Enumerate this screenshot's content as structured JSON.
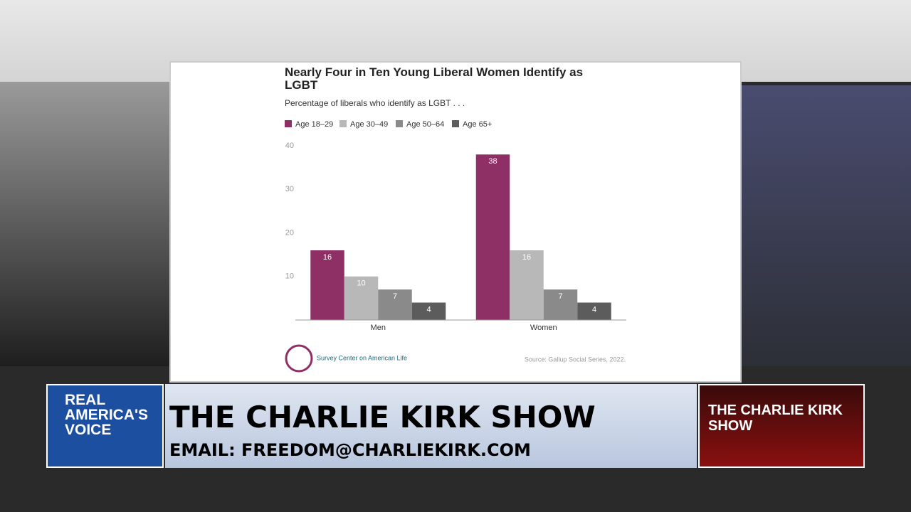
{
  "chart_data": {
    "type": "bar",
    "title": "Nearly Four in Ten Young Liberal Women Identify as LGBT",
    "subtitle": "Percentage of liberals who identify as LGBT . . .",
    "categories": [
      "Men",
      "Women"
    ],
    "series": [
      {
        "name": "Age 18–29",
        "color": "#8e2f66",
        "values": [
          16,
          38
        ]
      },
      {
        "name": "Age 30–49",
        "color": "#b8b8b8",
        "values": [
          10,
          16
        ]
      },
      {
        "name": "Age 50–64",
        "color": "#8a8a8a",
        "values": [
          7,
          7
        ]
      },
      {
        "name": "Age 65+",
        "color": "#5c5c5c",
        "values": [
          4,
          4
        ]
      }
    ],
    "ylim": [
      0,
      40
    ],
    "yticks": [
      10,
      20,
      30,
      40
    ],
    "grid": false,
    "legend": "top-left",
    "source": "Source: Gallup Social Series, 2022.",
    "logo": "Survey Center on American Life"
  },
  "banner": {
    "network": "REAL AMERICA'S VOICE",
    "show": "THE CHARLIE KIRK SHOW",
    "email": "EMAIL: FREEDOM@CHARLIEKIRK.COM",
    "show_logo": "THE CHARLIE KIRK SHOW"
  }
}
